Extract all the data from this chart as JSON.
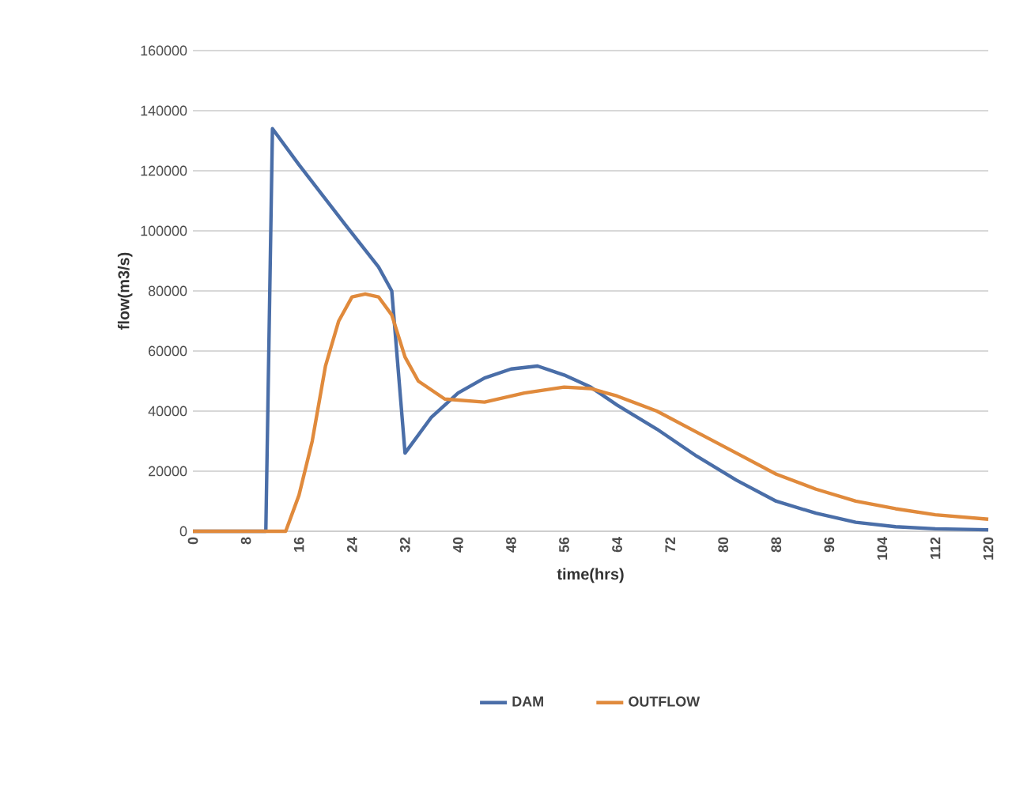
{
  "chart_data": {
    "type": "line",
    "xlabel": "time(hrs)",
    "ylabel": "flow(m3/s)",
    "xlim": [
      0,
      120
    ],
    "xticks": [
      0,
      8,
      16,
      24,
      32,
      40,
      48,
      56,
      64,
      72,
      80,
      88,
      96,
      104,
      112,
      120
    ],
    "ylim": [
      0,
      160000
    ],
    "yticks": [
      0,
      20000,
      40000,
      60000,
      80000,
      100000,
      120000,
      140000,
      160000
    ],
    "grid": "y",
    "legend": "bottom",
    "marker": "none",
    "line_style": "solid",
    "series": [
      {
        "name": "DAM",
        "color": "#4a6ea8",
        "x": [
          0,
          11,
          12,
          16,
          23,
          28,
          30,
          32,
          36,
          40,
          44,
          48,
          52,
          56,
          60,
          64,
          70,
          76,
          82,
          88,
          94,
          100,
          106,
          112,
          120
        ],
        "values": [
          0,
          0,
          134000,
          122000,
          102000,
          88000,
          80000,
          26000,
          38000,
          46000,
          51000,
          54000,
          55000,
          52000,
          48000,
          42000,
          34000,
          25000,
          17000,
          10000,
          6000,
          3000,
          1500,
          800,
          500
        ]
      },
      {
        "name": "OUTFLOW",
        "color": "#e08a3c",
        "x": [
          0,
          14,
          16,
          18,
          20,
          22,
          24,
          26,
          28,
          30,
          32,
          34,
          38,
          44,
          50,
          56,
          60,
          64,
          70,
          76,
          82,
          88,
          94,
          100,
          106,
          112,
          120
        ],
        "values": [
          0,
          0,
          12000,
          30000,
          55000,
          70000,
          78000,
          79000,
          78000,
          72000,
          58000,
          50000,
          44000,
          43000,
          46000,
          48000,
          47500,
          45000,
          40000,
          33000,
          26000,
          19000,
          14000,
          10000,
          7500,
          5500,
          4000
        ]
      }
    ]
  }
}
